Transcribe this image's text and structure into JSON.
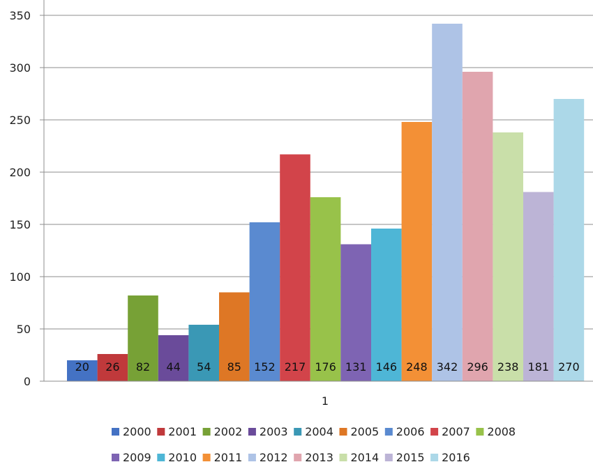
{
  "chart_data": {
    "type": "bar",
    "categories": [
      "1"
    ],
    "series": [
      {
        "name": "2000",
        "values": [
          20
        ],
        "color": "#4472c4"
      },
      {
        "name": "2001",
        "values": [
          26
        ],
        "color": "#c0393b"
      },
      {
        "name": "2002",
        "values": [
          82
        ],
        "color": "#77a136"
      },
      {
        "name": "2003",
        "values": [
          44
        ],
        "color": "#6a4b9a"
      },
      {
        "name": "2004",
        "values": [
          54
        ],
        "color": "#3a98b5"
      },
      {
        "name": "2005",
        "values": [
          85
        ],
        "color": "#de7725"
      },
      {
        "name": "2006",
        "values": [
          152
        ],
        "color": "#5a8ad0"
      },
      {
        "name": "2007",
        "values": [
          217
        ],
        "color": "#d2444a"
      },
      {
        "name": "2008",
        "values": [
          176
        ],
        "color": "#98c24a"
      },
      {
        "name": "2009",
        "values": [
          131
        ],
        "color": "#7e64b3"
      },
      {
        "name": "2010",
        "values": [
          146
        ],
        "color": "#4eb6d6"
      },
      {
        "name": "2011",
        "values": [
          248
        ],
        "color": "#f39036"
      },
      {
        "name": "2012",
        "values": [
          342
        ],
        "color": "#aec3e6"
      },
      {
        "name": "2013",
        "values": [
          296
        ],
        "color": "#e0a5ae"
      },
      {
        "name": "2014",
        "values": [
          238
        ],
        "color": "#c9dfa9"
      },
      {
        "name": "2015",
        "values": [
          181
        ],
        "color": "#bcb4d6"
      },
      {
        "name": "2016",
        "values": [
          270
        ],
        "color": "#acd8e8"
      }
    ],
    "y_ticks": [
      "0",
      "50",
      "100",
      "150",
      "200",
      "250",
      "300",
      "350"
    ],
    "ylim": [
      0,
      350
    ],
    "grid": true,
    "legend": "bottom",
    "title": "",
    "xlabel": "",
    "ylabel": ""
  }
}
